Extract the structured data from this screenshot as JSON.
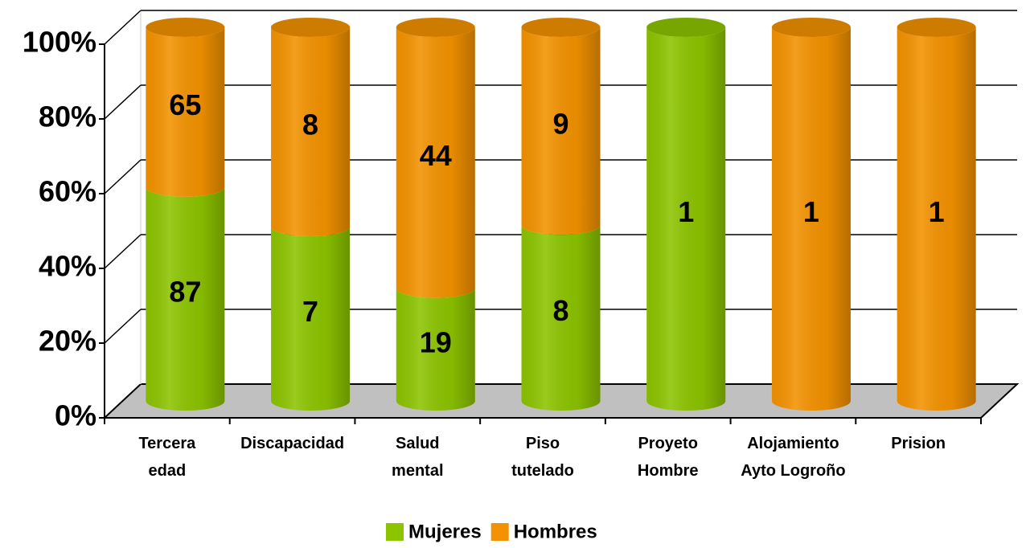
{
  "chart_data": {
    "type": "bar",
    "stacking": "percent",
    "grid": true,
    "legend": "bottom",
    "categories": [
      "Tercera\nedad",
      "Discapacidad",
      "Salud\nmental",
      "Piso\ntutelado",
      "Proyeto\nHombre",
      "Alojamiento\nAyto Logroño",
      "Prision"
    ],
    "series": [
      {
        "name": "Mujeres",
        "color": "#8cc400",
        "values": [
          87,
          7,
          19,
          8,
          1,
          0,
          0
        ]
      },
      {
        "name": "Hombres",
        "color": "#f39200",
        "values": [
          65,
          8,
          44,
          9,
          0,
          1,
          1
        ]
      }
    ],
    "ylim": [
      0,
      100
    ],
    "yticks": [
      {
        "value": 0,
        "label": "0%"
      },
      {
        "value": 20,
        "label": "20%"
      },
      {
        "value": 40,
        "label": "40%"
      },
      {
        "value": 60,
        "label": "60%"
      },
      {
        "value": 80,
        "label": "80%"
      },
      {
        "value": 100,
        "label": "100%"
      }
    ]
  }
}
